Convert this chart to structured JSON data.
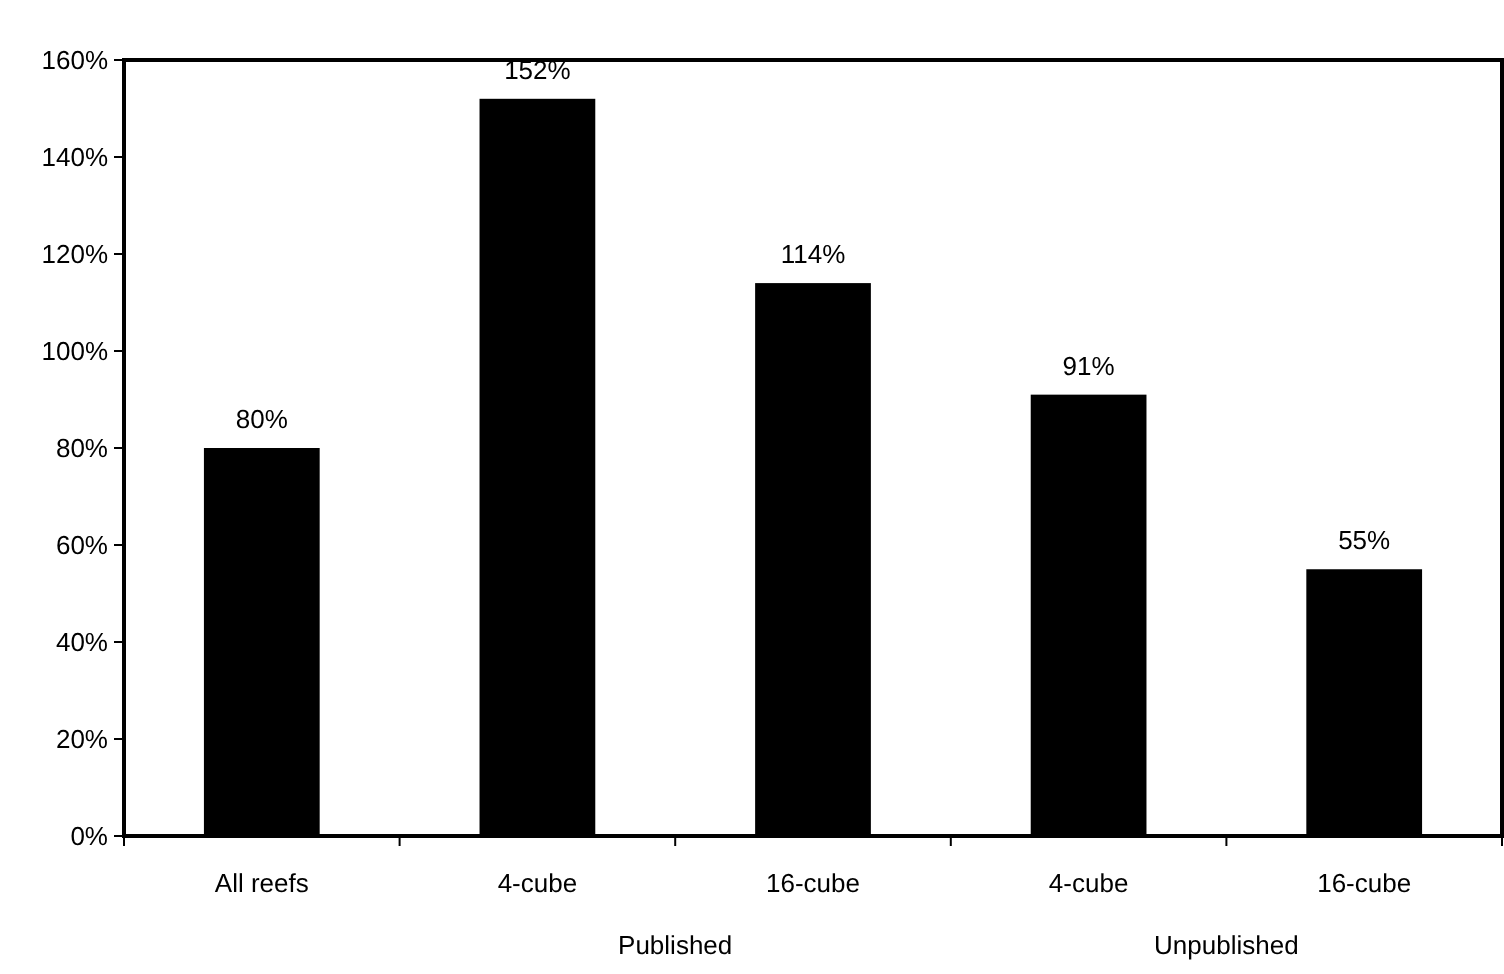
{
  "chart_data": {
    "type": "bar",
    "categories": [
      "All reefs",
      "4-cube",
      "16-cube",
      "4-cube",
      "16-cube"
    ],
    "values": [
      80,
      152,
      114,
      91,
      55
    ],
    "color": "#000000",
    "value_labels": [
      "80%",
      "152%",
      "114%",
      "91%",
      "55%"
    ],
    "ylim": [
      0,
      160
    ],
    "yticks": [
      {
        "value": 0,
        "label": "0%"
      },
      {
        "value": 20,
        "label": "20%"
      },
      {
        "value": 40,
        "label": "40%"
      },
      {
        "value": 60,
        "label": "60%"
      },
      {
        "value": 80,
        "label": "80%"
      },
      {
        "value": 100,
        "label": "100%"
      },
      {
        "value": 120,
        "label": "120%"
      },
      {
        "value": 140,
        "label": "140%"
      },
      {
        "value": 160,
        "label": "160%"
      }
    ],
    "annotations": [
      "Published",
      "Unpublished"
    ],
    "grid": false
  }
}
